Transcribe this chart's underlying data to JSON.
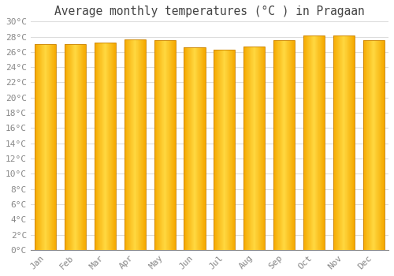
{
  "title": "Average monthly temperatures (°C ) in Pragaan",
  "months": [
    "Jan",
    "Feb",
    "Mar",
    "Apr",
    "May",
    "Jun",
    "Jul",
    "Aug",
    "Sep",
    "Oct",
    "Nov",
    "Dec"
  ],
  "values": [
    27.0,
    27.0,
    27.2,
    27.6,
    27.5,
    26.6,
    26.3,
    26.7,
    27.5,
    28.2,
    28.2,
    27.5
  ],
  "bar_color_outer": "#F5A800",
  "bar_color_inner": "#FFD840",
  "bar_edge_color": "#C88000",
  "ylim": [
    0,
    30
  ],
  "ytick_step": 2,
  "background_color": "#FFFFFF",
  "grid_color": "#DDDDDD",
  "title_fontsize": 10.5,
  "tick_fontsize": 8,
  "font_family": "monospace"
}
